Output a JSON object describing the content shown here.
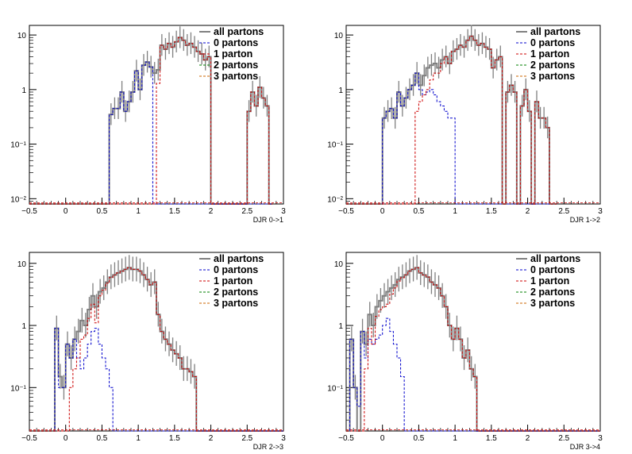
{
  "chart_data": [
    {
      "type": "histogram",
      "xlabel": "DJR 0->1",
      "xlim": [
        -0.5,
        3
      ],
      "ylim": [
        0.008,
        15
      ],
      "log_y": true,
      "grid": false,
      "legend_position": "top-right",
      "xticks": [
        "−0.5",
        "0",
        "0.5",
        "1",
        "1.5",
        "2",
        "2.5",
        "3"
      ],
      "yticks": [
        "10⁻²",
        "10⁻¹",
        "1",
        "10"
      ],
      "legend": [
        "all partons",
        "0 partons",
        "1 parton",
        "2 partons",
        "3 partons"
      ],
      "bin_width": 0.05,
      "bin_start": -0.5,
      "series": [
        {
          "color": "#808080",
          "values": [
            0,
            0,
            0,
            0,
            0,
            0,
            0,
            0,
            0,
            0,
            0,
            0,
            0,
            0,
            0,
            0,
            0,
            0,
            0,
            0,
            0,
            0,
            0.35,
            0.45,
            0.45,
            0.9,
            0.4,
            0.6,
            0.9,
            2.2,
            1.0,
            2.8,
            3.2,
            2.6,
            2.0,
            2.3,
            6.5,
            5.5,
            7.0,
            6.0,
            7.5,
            9.0,
            8.0,
            6.5,
            7.0,
            6.0,
            5.0,
            4.5,
            3.5,
            4.0,
            0,
            0,
            0,
            0,
            0,
            0,
            0,
            0,
            0,
            0,
            0.4,
            0.9,
            0.5,
            1.1,
            0.7,
            0.5,
            0
          ]
        },
        {
          "color": "#0000cc",
          "values": [
            0,
            0,
            0,
            0,
            0,
            0,
            0,
            0,
            0,
            0,
            0,
            0,
            0,
            0,
            0,
            0,
            0,
            0,
            0,
            0,
            0,
            0,
            0.35,
            0.45,
            0.45,
            0.9,
            0.4,
            0.6,
            0.9,
            2.2,
            1.0,
            2.8,
            3.2,
            2.6,
            0,
            0,
            0,
            0,
            0,
            0,
            0,
            0,
            0,
            0,
            0,
            0,
            0,
            0,
            0,
            0,
            0,
            0,
            0,
            0,
            0,
            0,
            0,
            0,
            0,
            0,
            0,
            0,
            0,
            0,
            0,
            0,
            0
          ]
        },
        {
          "color": "#cc0000",
          "values": [
            0,
            0,
            0,
            0,
            0,
            0,
            0,
            0,
            0,
            0,
            0,
            0,
            0,
            0,
            0,
            0,
            0,
            0,
            0,
            0,
            0,
            0,
            0,
            0,
            0,
            0,
            0,
            0,
            0,
            0,
            0,
            0,
            0,
            0,
            0,
            1.3,
            6.5,
            5.5,
            7.0,
            6.0,
            7.5,
            9.0,
            8.0,
            6.5,
            7.0,
            6.0,
            5.0,
            4.5,
            3.5,
            4.0,
            0,
            0,
            0,
            0,
            0,
            0,
            0,
            0,
            0,
            0,
            0.4,
            0.9,
            0.5,
            1.1,
            0.7,
            0.5,
            0
          ]
        }
      ]
    },
    {
      "type": "histogram",
      "xlabel": "DJR 1->2",
      "xlim": [
        -0.5,
        3
      ],
      "ylim": [
        0.008,
        15
      ],
      "log_y": true,
      "grid": false,
      "legend_position": "top-right",
      "xticks": [
        "−0.5",
        "0",
        "0.5",
        "1",
        "1.5",
        "2",
        "2.5",
        "3"
      ],
      "yticks": [
        "10⁻²",
        "10⁻¹",
        "1",
        "10"
      ],
      "legend": [
        "all partons",
        "0 partons",
        "1 parton",
        "2 partons",
        "3 partons"
      ],
      "bin_width": 0.05,
      "bin_start": -0.5,
      "series": [
        {
          "color": "#808080",
          "values": [
            0,
            0,
            0,
            0,
            0,
            0,
            0,
            0,
            0,
            0,
            0.3,
            0.4,
            0.45,
            0.3,
            0.9,
            0.5,
            0.7,
            1.0,
            1.2,
            2.0,
            1.2,
            1.8,
            2.5,
            2.8,
            3.0,
            2.5,
            3.5,
            4.0,
            3.0,
            5.0,
            5.5,
            6.5,
            6.0,
            8.0,
            9.5,
            8.0,
            6.5,
            7.0,
            6.0,
            5.5,
            2.5,
            3.5,
            4.0,
            0,
            0.9,
            1.2,
            0.9,
            0,
            0.5,
            1.0,
            0.4,
            0,
            0.6,
            0.3,
            0.3,
            0.2,
            0,
            0
          ]
        },
        {
          "color": "#0000cc",
          "values": [
            0,
            0,
            0,
            0,
            0,
            0,
            0,
            0,
            0,
            0,
            0.3,
            0.4,
            0.45,
            0.3,
            0.9,
            0.5,
            0.7,
            1.0,
            1.2,
            2.0,
            1.0,
            0.8,
            0.9,
            1.0,
            0.8,
            0.6,
            0.5,
            0.4,
            0.3,
            0.3,
            0,
            0,
            0,
            0,
            0,
            0,
            0,
            0,
            0,
            0,
            0,
            0,
            0,
            0,
            0,
            0,
            0,
            0,
            0,
            0,
            0,
            0,
            0,
            0,
            0,
            0,
            0,
            0
          ]
        },
        {
          "color": "#cc0000",
          "values": [
            0,
            0,
            0,
            0,
            0,
            0,
            0,
            0,
            0,
            0,
            0,
            0,
            0,
            0,
            0,
            0,
            0,
            0,
            0,
            0.4,
            0.6,
            0.8,
            1.0,
            1.5,
            2.0,
            2.0,
            3.0,
            4.0,
            3.0,
            5.0,
            5.5,
            6.5,
            6.0,
            8.0,
            9.5,
            8.0,
            6.5,
            7.0,
            6.0,
            5.5,
            2.5,
            3.5,
            4.0,
            0,
            0.9,
            1.2,
            0.9,
            0,
            0.5,
            1.0,
            0.4,
            0,
            0.6,
            0.3,
            0.3,
            0.2,
            0,
            0
          ]
        }
      ]
    },
    {
      "type": "histogram",
      "xlabel": "DJR 2->3",
      "xlim": [
        -0.5,
        3
      ],
      "ylim": [
        0.02,
        15
      ],
      "log_y": true,
      "grid": false,
      "legend_position": "top-right",
      "xticks": [
        "−0.5",
        "0",
        "0.5",
        "1",
        "1.5",
        "2",
        "2.5",
        "3"
      ],
      "yticks": [
        "10⁻¹",
        "1",
        "10"
      ],
      "legend": [
        "all partons",
        "0 partons",
        "1 parton",
        "2 partons",
        "3 partons"
      ],
      "bin_width": 0.05,
      "bin_start": -0.5,
      "series": [
        {
          "color": "#808080",
          "values": [
            0,
            0,
            0,
            0,
            0,
            0,
            0,
            0.9,
            0.15,
            0.1,
            0.5,
            0.3,
            0.6,
            0.8,
            1.2,
            1.0,
            1.8,
            3.0,
            2.0,
            3.5,
            4.0,
            5.0,
            6.0,
            6.5,
            7.0,
            7.5,
            8.0,
            8.5,
            8.0,
            8.0,
            7.5,
            6.5,
            5.5,
            4.5,
            5.0,
            1.5,
            0.8,
            0.6,
            0.5,
            0.4,
            0.35,
            0.3,
            0.2,
            0.2,
            0.18,
            0.15,
            0,
            0,
            0,
            0,
            0,
            0,
            0,
            0,
            0,
            0,
            0,
            0,
            0,
            0,
            0,
            0,
            0,
            0,
            0,
            0,
            0,
            0,
            0,
            0
          ]
        },
        {
          "color": "#0000cc",
          "values": [
            0,
            0,
            0,
            0,
            0,
            0,
            0,
            0.9,
            0.1,
            0.1,
            0.5,
            0.3,
            0.6,
            0.3,
            0.2,
            0.3,
            0.5,
            0.8,
            0.9,
            0.5,
            0.3,
            0.2,
            0.1,
            0,
            0,
            0,
            0,
            0,
            0,
            0,
            0,
            0,
            0,
            0,
            0,
            0,
            0,
            0,
            0,
            0,
            0,
            0,
            0,
            0,
            0,
            0,
            0,
            0,
            0,
            0,
            0,
            0,
            0,
            0,
            0,
            0,
            0,
            0,
            0,
            0,
            0,
            0,
            0,
            0,
            0,
            0,
            0,
            0,
            0,
            0
          ]
        },
        {
          "color": "#cc0000",
          "values": [
            0,
            0,
            0,
            0,
            0,
            0,
            0,
            0,
            0,
            0,
            0,
            0.1,
            0.2,
            0.3,
            0.6,
            0.7,
            1.3,
            2.2,
            1.1,
            3.0,
            3.7,
            4.8,
            5.9,
            6.5,
            7.0,
            7.5,
            8.0,
            8.5,
            8.0,
            8.0,
            7.5,
            6.5,
            5.5,
            4.5,
            5.0,
            1.5,
            0.8,
            0.6,
            0.5,
            0.4,
            0.35,
            0.3,
            0.2,
            0.2,
            0.18,
            0.15,
            0,
            0,
            0,
            0,
            0,
            0,
            0,
            0,
            0,
            0,
            0,
            0,
            0,
            0,
            0,
            0,
            0,
            0,
            0,
            0,
            0,
            0,
            0,
            0
          ]
        }
      ]
    },
    {
      "type": "histogram",
      "xlabel": "DJR 3->4",
      "xlim": [
        -0.5,
        3
      ],
      "ylim": [
        0.02,
        15
      ],
      "log_y": true,
      "grid": false,
      "legend_position": "top-right",
      "xticks": [
        "−0.5",
        "0",
        "0.5",
        "1",
        "1.5",
        "2",
        "2.5",
        "3"
      ],
      "yticks": [
        "10⁻¹",
        "1",
        "10"
      ],
      "legend": [
        "all partons",
        "0 partons",
        "1 parton",
        "2 partons",
        "3 partons"
      ],
      "bin_width": 0.05,
      "bin_start": -0.5,
      "series": [
        {
          "color": "#808080",
          "values": [
            0,
            0.6,
            0.1,
            0,
            0.8,
            0.5,
            1.5,
            1.0,
            2.0,
            2.5,
            3.0,
            3.5,
            4.0,
            4.5,
            5.5,
            6.0,
            6.5,
            7.5,
            8.0,
            8.5,
            7.0,
            6.5,
            6.0,
            5.0,
            4.5,
            4.0,
            3.0,
            2.0,
            1.0,
            0.6,
            0.9,
            0.6,
            0.3,
            0.4,
            0.2,
            0.15,
            0,
            0,
            0,
            0,
            0,
            0,
            0,
            0,
            0,
            0,
            0,
            0,
            0,
            0,
            0,
            0,
            0,
            0,
            0,
            0,
            0,
            0,
            0,
            0,
            0,
            0,
            0,
            0,
            0,
            0,
            0,
            0,
            0,
            0
          ]
        },
        {
          "color": "#0000cc",
          "values": [
            0,
            0.6,
            0.1,
            0.05,
            0.8,
            0.3,
            0.6,
            0.5,
            0.6,
            0.7,
            1.0,
            1.3,
            0.8,
            0.5,
            0.3,
            0.15,
            0,
            0,
            0,
            0,
            0,
            0,
            0,
            0,
            0,
            0,
            0,
            0,
            0,
            0,
            0,
            0,
            0,
            0,
            0,
            0,
            0,
            0,
            0,
            0,
            0,
            0,
            0,
            0,
            0,
            0,
            0,
            0,
            0,
            0,
            0,
            0,
            0,
            0,
            0,
            0,
            0,
            0,
            0,
            0,
            0,
            0,
            0,
            0,
            0,
            0,
            0,
            0,
            0,
            0
          ]
        },
        {
          "color": "#cc0000",
          "values": [
            0,
            0,
            0,
            0,
            0,
            0.2,
            0.9,
            0.5,
            1.4,
            1.8,
            2.0,
            2.2,
            3.2,
            4.0,
            5.2,
            5.85,
            6.5,
            7.5,
            8.0,
            8.5,
            7.0,
            6.5,
            6.0,
            5.0,
            4.5,
            4.0,
            3.0,
            2.0,
            1.0,
            0.6,
            0.9,
            0.6,
            0.3,
            0.4,
            0.2,
            0.15,
            0,
            0,
            0,
            0,
            0,
            0,
            0,
            0,
            0,
            0,
            0,
            0,
            0,
            0,
            0,
            0,
            0,
            0,
            0,
            0,
            0,
            0,
            0,
            0,
            0,
            0,
            0,
            0,
            0,
            0,
            0,
            0,
            0,
            0
          ]
        }
      ]
    }
  ]
}
